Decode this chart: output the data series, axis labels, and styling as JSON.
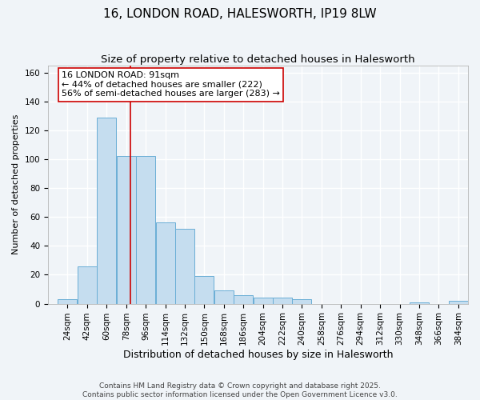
{
  "title": "16, LONDON ROAD, HALESWORTH, IP19 8LW",
  "subtitle": "Size of property relative to detached houses in Halesworth",
  "xlabel": "Distribution of detached houses by size in Halesworth",
  "ylabel": "Number of detached properties",
  "bin_labels": [
    "24sqm",
    "42sqm",
    "60sqm",
    "78sqm",
    "96sqm",
    "114sqm",
    "132sqm",
    "150sqm",
    "168sqm",
    "186sqm",
    "204sqm",
    "222sqm",
    "240sqm",
    "258sqm",
    "276sqm",
    "294sqm",
    "312sqm",
    "330sqm",
    "348sqm",
    "366sqm",
    "384sqm"
  ],
  "bin_left_edges": [
    24,
    42,
    60,
    78,
    96,
    114,
    132,
    150,
    168,
    186,
    204,
    222,
    240,
    258,
    276,
    294,
    312,
    330,
    348,
    366,
    384
  ],
  "bin_width": 18,
  "bar_heights": [
    3,
    26,
    129,
    102,
    102,
    56,
    52,
    19,
    9,
    6,
    4,
    4,
    3,
    0,
    0,
    0,
    0,
    0,
    1,
    0,
    2
  ],
  "bar_color": "#c5ddef",
  "bar_edge_color": "#6aaed6",
  "property_size": 91,
  "vline_color": "#cc0000",
  "annotation_text": "16 LONDON ROAD: 91sqm\n← 44% of detached houses are smaller (222)\n56% of semi-detached houses are larger (283) →",
  "annotation_box_color": "#ffffff",
  "annotation_box_edge_color": "#cc0000",
  "ylim": [
    0,
    165
  ],
  "xlim_left": 15,
  "xlim_right": 402,
  "footer_line1": "Contains HM Land Registry data © Crown copyright and database right 2025.",
  "footer_line2": "Contains public sector information licensed under the Open Government Licence v3.0.",
  "background_color": "#f0f4f8",
  "grid_color": "#ffffff",
  "title_fontsize": 11,
  "subtitle_fontsize": 9.5,
  "xlabel_fontsize": 9,
  "ylabel_fontsize": 8,
  "tick_fontsize": 7.5,
  "annotation_fontsize": 8,
  "footer_fontsize": 6.5
}
